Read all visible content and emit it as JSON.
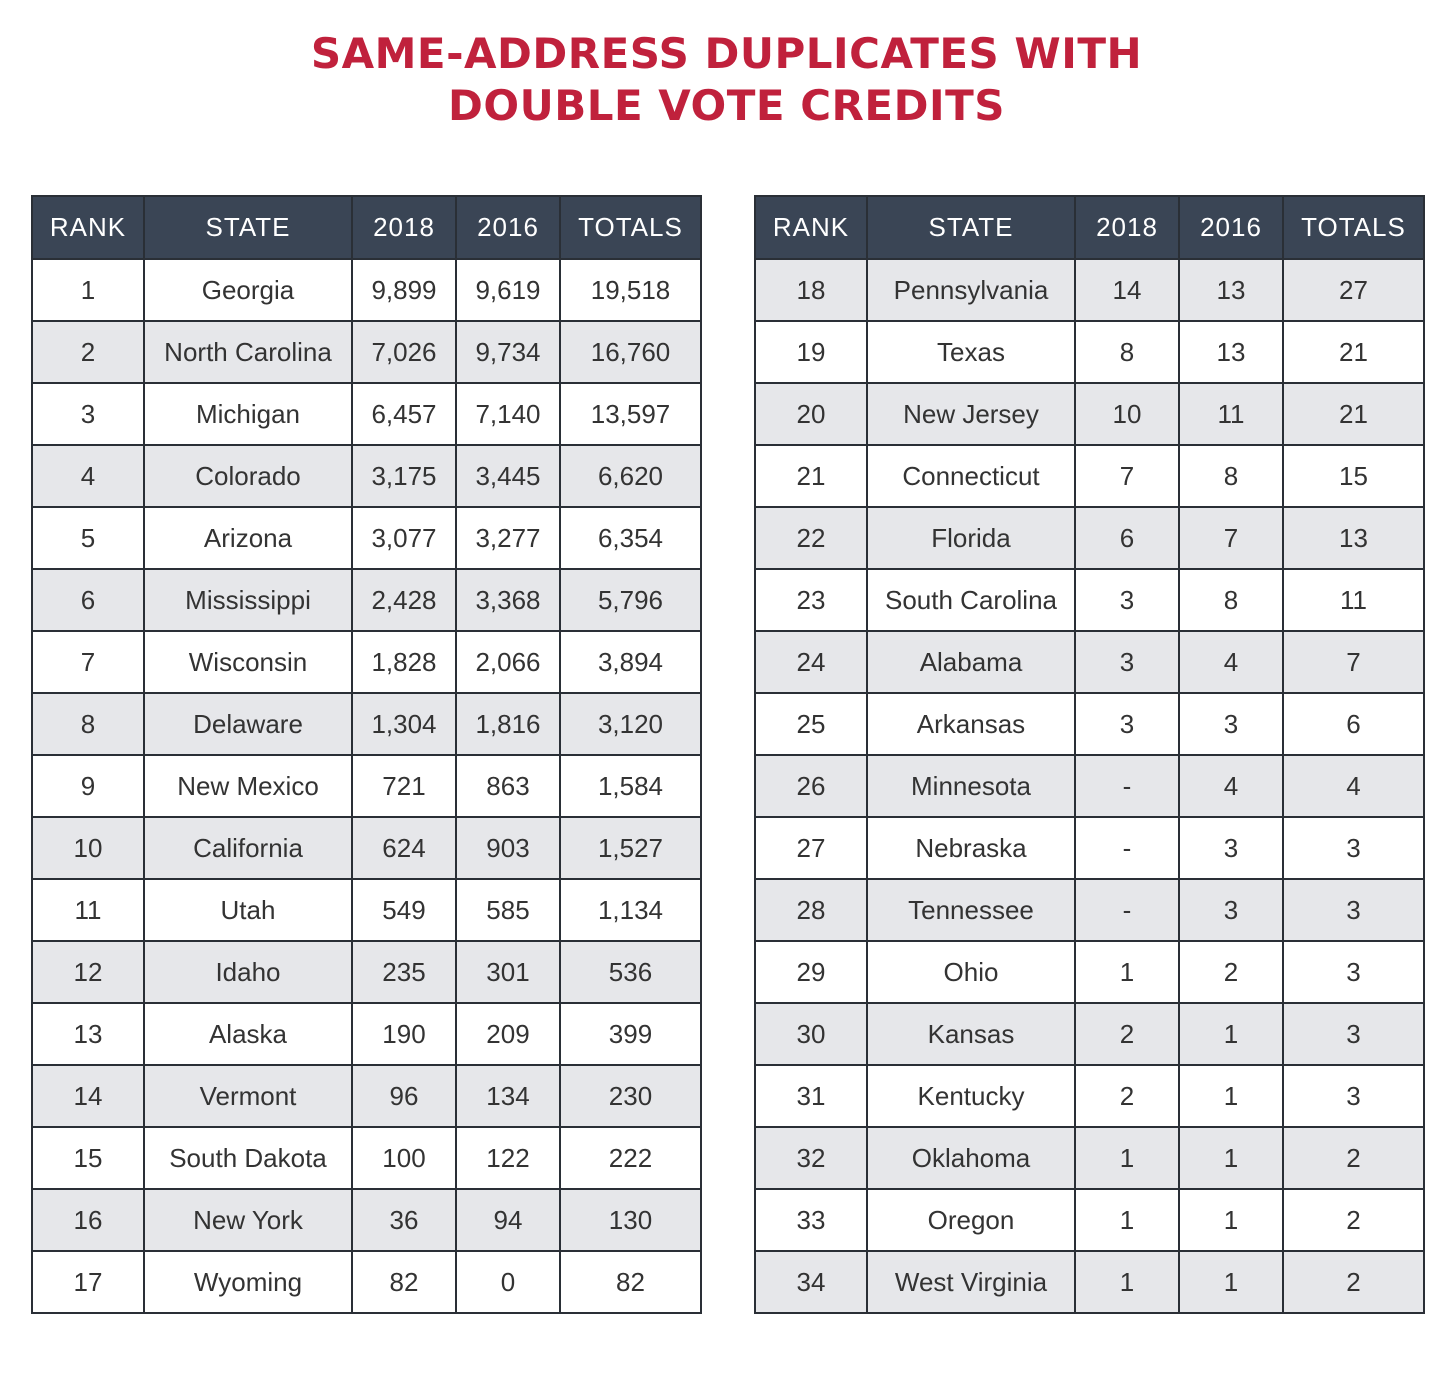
{
  "title": {
    "line1": "SAME-ADDRESS DUPLICATES WITH",
    "line2": "DOUBLE VOTE CREDITS"
  },
  "columns": {
    "rank": "RANK",
    "state": "STATE",
    "y2018": "2018",
    "y2016": "2016",
    "totals": "TOTALS"
  },
  "colors": {
    "title": "#c0213c",
    "header_bg": "#3a4555",
    "row_shade": "#e6e7ea",
    "border": "#2a2f36"
  },
  "tables": [
    {
      "rows": [
        {
          "rank": "1",
          "state": "Georgia",
          "y2018": "9,899",
          "y2016": "9,619",
          "totals": "19,518"
        },
        {
          "rank": "2",
          "state": "North Carolina",
          "y2018": "7,026",
          "y2016": "9,734",
          "totals": "16,760"
        },
        {
          "rank": "3",
          "state": "Michigan",
          "y2018": "6,457",
          "y2016": "7,140",
          "totals": "13,597"
        },
        {
          "rank": "4",
          "state": "Colorado",
          "y2018": "3,175",
          "y2016": "3,445",
          "totals": "6,620"
        },
        {
          "rank": "5",
          "state": "Arizona",
          "y2018": "3,077",
          "y2016": "3,277",
          "totals": "6,354"
        },
        {
          "rank": "6",
          "state": "Mississippi",
          "y2018": "2,428",
          "y2016": "3,368",
          "totals": "5,796"
        },
        {
          "rank": "7",
          "state": "Wisconsin",
          "y2018": "1,828",
          "y2016": "2,066",
          "totals": "3,894"
        },
        {
          "rank": "8",
          "state": "Delaware",
          "y2018": "1,304",
          "y2016": "1,816",
          "totals": "3,120"
        },
        {
          "rank": "9",
          "state": "New Mexico",
          "y2018": "721",
          "y2016": "863",
          "totals": "1,584"
        },
        {
          "rank": "10",
          "state": "California",
          "y2018": "624",
          "y2016": "903",
          "totals": "1,527"
        },
        {
          "rank": "11",
          "state": "Utah",
          "y2018": "549",
          "y2016": "585",
          "totals": "1,134"
        },
        {
          "rank": "12",
          "state": "Idaho",
          "y2018": "235",
          "y2016": "301",
          "totals": "536"
        },
        {
          "rank": "13",
          "state": "Alaska",
          "y2018": "190",
          "y2016": "209",
          "totals": "399"
        },
        {
          "rank": "14",
          "state": "Vermont",
          "y2018": "96",
          "y2016": "134",
          "totals": "230"
        },
        {
          "rank": "15",
          "state": "South Dakota",
          "y2018": "100",
          "y2016": "122",
          "totals": "222"
        },
        {
          "rank": "16",
          "state": "New York",
          "y2018": "36",
          "y2016": "94",
          "totals": "130"
        },
        {
          "rank": "17",
          "state": "Wyoming",
          "y2018": "82",
          "y2016": "0",
          "totals": "82"
        }
      ]
    },
    {
      "rows": [
        {
          "rank": "18",
          "state": "Pennsylvania",
          "y2018": "14",
          "y2016": "13",
          "totals": "27"
        },
        {
          "rank": "19",
          "state": "Texas",
          "y2018": "8",
          "y2016": "13",
          "totals": "21"
        },
        {
          "rank": "20",
          "state": "New Jersey",
          "y2018": "10",
          "y2016": "11",
          "totals": "21"
        },
        {
          "rank": "21",
          "state": "Connecticut",
          "y2018": "7",
          "y2016": "8",
          "totals": "15"
        },
        {
          "rank": "22",
          "state": "Florida",
          "y2018": "6",
          "y2016": "7",
          "totals": "13"
        },
        {
          "rank": "23",
          "state": "South Carolina",
          "y2018": "3",
          "y2016": "8",
          "totals": "11"
        },
        {
          "rank": "24",
          "state": "Alabama",
          "y2018": "3",
          "y2016": "4",
          "totals": "7"
        },
        {
          "rank": "25",
          "state": "Arkansas",
          "y2018": "3",
          "y2016": "3",
          "totals": "6"
        },
        {
          "rank": "26",
          "state": "Minnesota",
          "y2018": "-",
          "y2016": "4",
          "totals": "4"
        },
        {
          "rank": "27",
          "state": "Nebraska",
          "y2018": "-",
          "y2016": "3",
          "totals": "3"
        },
        {
          "rank": "28",
          "state": "Tennessee",
          "y2018": "-",
          "y2016": "3",
          "totals": "3"
        },
        {
          "rank": "29",
          "state": "Ohio",
          "y2018": "1",
          "y2016": "2",
          "totals": "3"
        },
        {
          "rank": "30",
          "state": "Kansas",
          "y2018": "2",
          "y2016": "1",
          "totals": "3"
        },
        {
          "rank": "31",
          "state": "Kentucky",
          "y2018": "2",
          "y2016": "1",
          "totals": "3"
        },
        {
          "rank": "32",
          "state": "Oklahoma",
          "y2018": "1",
          "y2016": "1",
          "totals": "2"
        },
        {
          "rank": "33",
          "state": "Oregon",
          "y2018": "1",
          "y2016": "1",
          "totals": "2"
        },
        {
          "rank": "34",
          "state": "West Virginia",
          "y2018": "1",
          "y2016": "1",
          "totals": "2"
        }
      ]
    }
  ]
}
